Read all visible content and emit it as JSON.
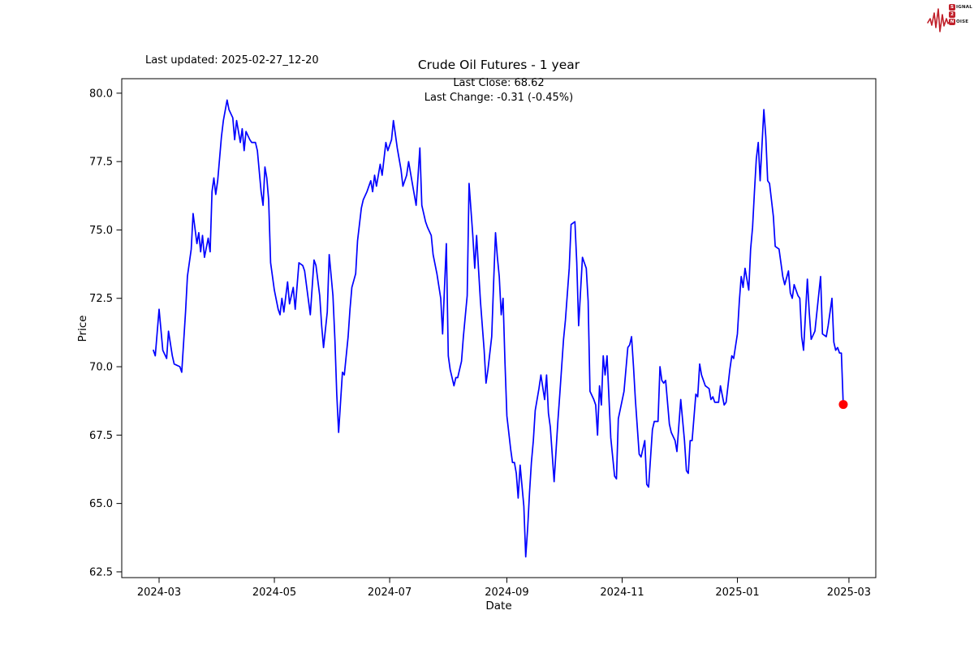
{
  "logo": {
    "rows": [
      {
        "boxed": "S",
        "rest": "IGNAL"
      },
      {
        "boxed": "2",
        "rest": ""
      },
      {
        "boxed": "N",
        "rest": "OISE"
      }
    ],
    "accent_color": "#c0202a"
  },
  "header": {
    "last_updated": "Last updated: 2025-02-27_12-20",
    "title": "Crude Oil Futures - 1 year"
  },
  "annotation": {
    "line1": "Last Close: 68.62",
    "line2": "Last Change: -0.31 (-0.45%)"
  },
  "chart_data": {
    "type": "line",
    "title": "Crude Oil Futures - 1 year",
    "xlabel": "Date",
    "ylabel": "Price",
    "grid": false,
    "line_color": "#0000ff",
    "last_point_color": "#ff0000",
    "frame_color": "#000000",
    "last_close": 68.62,
    "last_change": -0.31,
    "last_change_pct": "-0.45%",
    "ylim": [
      62.29,
      80.53
    ],
    "xlim_days": [
      -19.75,
      379.2
    ],
    "y_ticks": [
      {
        "label": "80.0",
        "value": 80.0
      },
      {
        "label": "77.5",
        "value": 77.5
      },
      {
        "label": "75.0",
        "value": 75.0
      },
      {
        "label": "72.5",
        "value": 72.5
      },
      {
        "label": "70.0",
        "value": 70.0
      },
      {
        "label": "67.5",
        "value": 67.5
      },
      {
        "label": "65.0",
        "value": 65.0
      },
      {
        "label": "62.5",
        "value": 62.5
      }
    ],
    "x_ticks": [
      {
        "label": "2024-03",
        "day": 0
      },
      {
        "label": "2024-05",
        "day": 61
      },
      {
        "label": "2024-07",
        "day": 122
      },
      {
        "label": "2024-09",
        "day": 184
      },
      {
        "label": "2024-11",
        "day": 245
      },
      {
        "label": "2025-01",
        "day": 306
      },
      {
        "label": "2025-03",
        "day": 365
      }
    ],
    "x_epoch": "2024-03-01",
    "series": [
      {
        "name": "Crude Oil Futures",
        "points": [
          [
            -3,
            70.6
          ],
          [
            -2,
            70.4
          ],
          [
            0,
            72.1
          ],
          [
            2,
            70.6
          ],
          [
            4,
            70.3
          ],
          [
            5,
            71.3
          ],
          [
            7,
            70.4
          ],
          [
            8,
            70.1
          ],
          [
            11,
            70.0
          ],
          [
            12,
            69.8
          ],
          [
            14,
            72.0
          ],
          [
            15,
            73.3
          ],
          [
            17,
            74.3
          ],
          [
            18,
            75.6
          ],
          [
            20,
            74.5
          ],
          [
            21,
            74.9
          ],
          [
            22,
            74.2
          ],
          [
            23,
            74.8
          ],
          [
            24,
            74.0
          ],
          [
            26,
            74.7
          ],
          [
            27,
            74.2
          ],
          [
            28,
            76.4
          ],
          [
            29,
            76.9
          ],
          [
            30,
            76.3
          ],
          [
            31,
            76.8
          ],
          [
            33,
            78.4
          ],
          [
            34,
            79.0
          ],
          [
            36,
            79.75
          ],
          [
            37,
            79.4
          ],
          [
            39,
            79.1
          ],
          [
            40,
            78.3
          ],
          [
            41,
            79.0
          ],
          [
            43,
            78.2
          ],
          [
            44,
            78.7
          ],
          [
            45,
            77.9
          ],
          [
            46,
            78.6
          ],
          [
            48,
            78.3
          ],
          [
            49,
            78.2
          ],
          [
            51,
            78.2
          ],
          [
            52,
            77.9
          ],
          [
            54,
            76.4
          ],
          [
            55,
            75.9
          ],
          [
            56,
            77.3
          ],
          [
            57,
            76.9
          ],
          [
            58,
            76.1
          ],
          [
            59,
            73.8
          ],
          [
            61,
            72.8
          ],
          [
            63,
            72.1
          ],
          [
            64,
            71.9
          ],
          [
            65,
            72.5
          ],
          [
            66,
            72.0
          ],
          [
            68,
            73.1
          ],
          [
            69,
            72.3
          ],
          [
            71,
            72.9
          ],
          [
            72,
            72.1
          ],
          [
            74,
            73.8
          ],
          [
            76,
            73.7
          ],
          [
            77,
            73.5
          ],
          [
            80,
            71.9
          ],
          [
            82,
            73.9
          ],
          [
            83,
            73.7
          ],
          [
            85,
            72.6
          ],
          [
            86,
            71.5
          ],
          [
            87,
            70.7
          ],
          [
            89,
            72.0
          ],
          [
            90,
            74.1
          ],
          [
            92,
            72.6
          ],
          [
            93,
            71.0
          ],
          [
            94,
            69.0
          ],
          [
            95,
            67.6
          ],
          [
            97,
            69.8
          ],
          [
            98,
            69.7
          ],
          [
            100,
            71.1
          ],
          [
            101,
            72.1
          ],
          [
            102,
            72.9
          ],
          [
            104,
            73.4
          ],
          [
            105,
            74.6
          ],
          [
            107,
            75.8
          ],
          [
            108,
            76.1
          ],
          [
            110,
            76.4
          ],
          [
            112,
            76.8
          ],
          [
            113,
            76.4
          ],
          [
            114,
            77.0
          ],
          [
            115,
            76.6
          ],
          [
            117,
            77.4
          ],
          [
            118,
            77.0
          ],
          [
            120,
            78.2
          ],
          [
            121,
            77.9
          ],
          [
            123,
            78.3
          ],
          [
            124,
            79.0
          ],
          [
            125,
            78.5
          ],
          [
            126,
            78.0
          ],
          [
            128,
            77.2
          ],
          [
            129,
            76.6
          ],
          [
            131,
            77.0
          ],
          [
            132,
            77.5
          ],
          [
            134,
            76.7
          ],
          [
            136,
            75.9
          ],
          [
            138,
            78.0
          ],
          [
            139,
            75.9
          ],
          [
            141,
            75.3
          ],
          [
            142,
            75.1
          ],
          [
            144,
            74.8
          ],
          [
            145,
            74.1
          ],
          [
            147,
            73.4
          ],
          [
            149,
            72.5
          ],
          [
            150,
            71.2
          ],
          [
            152,
            74.5
          ],
          [
            153,
            70.4
          ],
          [
            154,
            69.9
          ],
          [
            156,
            69.3
          ],
          [
            157,
            69.6
          ],
          [
            158,
            69.6
          ],
          [
            160,
            70.2
          ],
          [
            161,
            71.1
          ],
          [
            163,
            72.6
          ],
          [
            164,
            76.7
          ],
          [
            166,
            74.8
          ],
          [
            167,
            73.6
          ],
          [
            168,
            74.8
          ],
          [
            169,
            73.6
          ],
          [
            170,
            72.4
          ],
          [
            172,
            70.6
          ],
          [
            173,
            69.4
          ],
          [
            174,
            69.9
          ],
          [
            176,
            71.1
          ],
          [
            177,
            73.1
          ],
          [
            178,
            74.9
          ],
          [
            179,
            74.0
          ],
          [
            180,
            73.3
          ],
          [
            181,
            71.9
          ],
          [
            182,
            72.5
          ],
          [
            183,
            70.2
          ],
          [
            184,
            68.2
          ],
          [
            186,
            67.0
          ],
          [
            187,
            66.5
          ],
          [
            188,
            66.5
          ],
          [
            189,
            66.1
          ],
          [
            190,
            65.2
          ],
          [
            191,
            66.4
          ],
          [
            193,
            64.9
          ],
          [
            194,
            63.05
          ],
          [
            195,
            64.1
          ],
          [
            196,
            65.4
          ],
          [
            197,
            66.5
          ],
          [
            198,
            67.3
          ],
          [
            199,
            68.4
          ],
          [
            201,
            69.2
          ],
          [
            202,
            69.7
          ],
          [
            204,
            68.8
          ],
          [
            205,
            69.7
          ],
          [
            206,
            68.3
          ],
          [
            207,
            67.8
          ],
          [
            209,
            65.8
          ],
          [
            211,
            68.0
          ],
          [
            212,
            69.0
          ],
          [
            214,
            71.0
          ],
          [
            215,
            71.7
          ],
          [
            217,
            73.6
          ],
          [
            218,
            75.2
          ],
          [
            220,
            75.3
          ],
          [
            221,
            73.8
          ],
          [
            222,
            71.5
          ],
          [
            224,
            74.0
          ],
          [
            225,
            73.8
          ],
          [
            226,
            73.6
          ],
          [
            227,
            72.4
          ],
          [
            228,
            69.1
          ],
          [
            230,
            68.8
          ],
          [
            231,
            68.6
          ],
          [
            232,
            67.5
          ],
          [
            233,
            69.3
          ],
          [
            234,
            68.6
          ],
          [
            235,
            70.4
          ],
          [
            236,
            69.7
          ],
          [
            237,
            70.4
          ],
          [
            238,
            68.9
          ],
          [
            239,
            67.4
          ],
          [
            241,
            66.0
          ],
          [
            242,
            65.9
          ],
          [
            243,
            68.1
          ],
          [
            246,
            69.1
          ],
          [
            248,
            70.7
          ],
          [
            249,
            70.8
          ],
          [
            250,
            71.1
          ],
          [
            251,
            70.0
          ],
          [
            252,
            68.8
          ],
          [
            254,
            66.8
          ],
          [
            255,
            66.7
          ],
          [
            257,
            67.3
          ],
          [
            258,
            65.7
          ],
          [
            259,
            65.6
          ],
          [
            261,
            67.7
          ],
          [
            262,
            68.0
          ],
          [
            264,
            68.0
          ],
          [
            265,
            70.0
          ],
          [
            266,
            69.5
          ],
          [
            267,
            69.4
          ],
          [
            268,
            69.5
          ],
          [
            270,
            67.9
          ],
          [
            271,
            67.6
          ],
          [
            273,
            67.3
          ],
          [
            274,
            66.9
          ],
          [
            276,
            68.8
          ],
          [
            278,
            67.3
          ],
          [
            279,
            66.2
          ],
          [
            280,
            66.1
          ],
          [
            281,
            67.3
          ],
          [
            282,
            67.3
          ],
          [
            284,
            69.0
          ],
          [
            285,
            68.9
          ],
          [
            286,
            70.1
          ],
          [
            287,
            69.7
          ],
          [
            289,
            69.3
          ],
          [
            291,
            69.2
          ],
          [
            292,
            68.8
          ],
          [
            293,
            68.9
          ],
          [
            294,
            68.7
          ],
          [
            296,
            68.7
          ],
          [
            297,
            69.3
          ],
          [
            299,
            68.6
          ],
          [
            300,
            68.7
          ],
          [
            302,
            69.9
          ],
          [
            303,
            70.4
          ],
          [
            304,
            70.3
          ],
          [
            306,
            71.2
          ],
          [
            307,
            72.4
          ],
          [
            308,
            73.3
          ],
          [
            309,
            72.9
          ],
          [
            310,
            73.6
          ],
          [
            312,
            72.8
          ],
          [
            313,
            74.3
          ],
          [
            314,
            75.1
          ],
          [
            315,
            76.4
          ],
          [
            316,
            77.6
          ],
          [
            317,
            78.2
          ],
          [
            318,
            76.8
          ],
          [
            320,
            79.4
          ],
          [
            321,
            78.4
          ],
          [
            322,
            76.8
          ],
          [
            323,
            76.7
          ],
          [
            325,
            75.5
          ],
          [
            326,
            74.4
          ],
          [
            328,
            74.3
          ],
          [
            329,
            73.8
          ],
          [
            330,
            73.3
          ],
          [
            331,
            73.0
          ],
          [
            333,
            73.5
          ],
          [
            334,
            72.7
          ],
          [
            335,
            72.5
          ],
          [
            336,
            73.0
          ],
          [
            338,
            72.6
          ],
          [
            339,
            72.5
          ],
          [
            340,
            71.1
          ],
          [
            341,
            70.6
          ],
          [
            343,
            73.2
          ],
          [
            344,
            72.0
          ],
          [
            345,
            71.0
          ],
          [
            347,
            71.3
          ],
          [
            350,
            73.3
          ],
          [
            351,
            71.2
          ],
          [
            353,
            71.1
          ],
          [
            354,
            71.5
          ],
          [
            356,
            72.5
          ],
          [
            357,
            70.9
          ],
          [
            358,
            70.6
          ],
          [
            359,
            70.7
          ],
          [
            360,
            70.5
          ],
          [
            361,
            70.5
          ],
          [
            362,
            68.62
          ]
        ]
      }
    ]
  }
}
